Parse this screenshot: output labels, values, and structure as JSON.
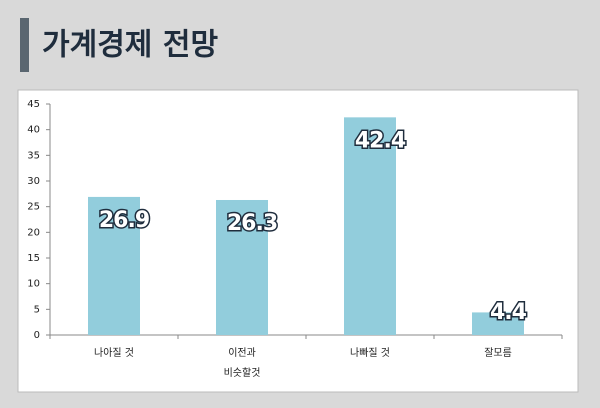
{
  "header": {
    "title": "가계경제 전망"
  },
  "chart_data": {
    "type": "bar",
    "categories": [
      "나아질 것",
      "이전과\n비슷할것",
      "나빠질 것",
      "잘모름"
    ],
    "values": [
      26.9,
      26.3,
      42.4,
      4.4
    ],
    "color": "#92cddc",
    "ylim": [
      0,
      45
    ],
    "yticks": [
      0,
      5,
      10,
      15,
      20,
      25,
      30,
      35,
      40,
      45
    ]
  }
}
